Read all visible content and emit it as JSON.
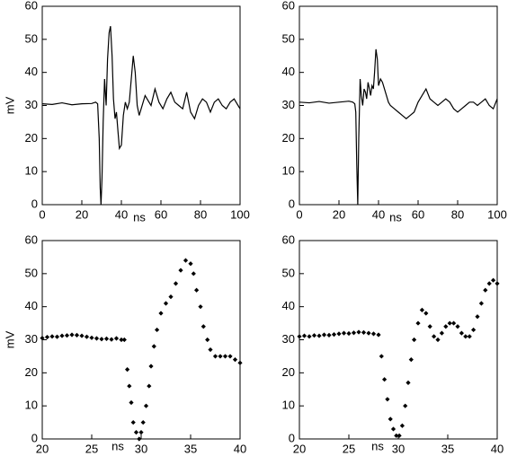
{
  "chart_data": [
    {
      "type": "line",
      "xlabel": "ns",
      "ylabel": "mV",
      "color": "#000000",
      "x": [
        0,
        5,
        10,
        15,
        20,
        25,
        27,
        28,
        28.8,
        29.3,
        29.7,
        30.2,
        30.8,
        31.5,
        32.3,
        33,
        33.8,
        34.5,
        35.3,
        36,
        36.8,
        37.5,
        38.3,
        39,
        40,
        41,
        42,
        43,
        44,
        45,
        46,
        47,
        48,
        49,
        50,
        51,
        52,
        53,
        55,
        57,
        59,
        61,
        63,
        65,
        67,
        69,
        71,
        73,
        75,
        77,
        79,
        81,
        83,
        85,
        87,
        89,
        91,
        93,
        95,
        97,
        100
      ],
      "values": [
        30.5,
        30.3,
        30.8,
        30.2,
        30.5,
        30.6,
        31,
        30.5,
        20,
        5,
        0,
        8,
        25,
        38,
        30,
        44,
        52,
        54,
        45,
        32,
        26,
        28,
        22,
        17,
        18,
        27,
        31,
        29,
        31,
        38,
        45,
        40,
        30,
        27,
        29,
        31,
        33,
        32,
        30,
        35,
        31,
        29,
        32,
        34,
        31,
        30,
        29,
        34,
        28,
        26,
        30,
        32,
        31,
        28,
        31,
        32,
        30,
        29,
        31,
        32,
        29
      ],
      "xlim": [
        0,
        100
      ],
      "xticks": [
        0,
        20,
        40,
        60,
        80,
        100
      ],
      "ylim": [
        0,
        60
      ],
      "yticks": [
        0,
        10,
        20,
        30,
        40,
        50,
        60
      ]
    },
    {
      "type": "line",
      "xlabel": "ns",
      "color": "#000000",
      "x": [
        0,
        5,
        10,
        15,
        20,
        25,
        27,
        28,
        28.5,
        29,
        29.5,
        30,
        30.7,
        31.3,
        32,
        32.7,
        33.4,
        34,
        34.7,
        35.4,
        36,
        36.7,
        37.4,
        38,
        38.7,
        39.4,
        40,
        41,
        42,
        43,
        44,
        45,
        46,
        48,
        50,
        52,
        54,
        56,
        58,
        60,
        62,
        64,
        66,
        68,
        70,
        72,
        74,
        76,
        78,
        80,
        82,
        84,
        86,
        88,
        90,
        92,
        94,
        96,
        98,
        100
      ],
      "values": [
        31,
        30.8,
        31.2,
        30.7,
        31,
        31.3,
        31,
        30.5,
        28,
        12,
        0,
        20,
        38,
        33,
        30,
        35,
        34,
        32,
        37,
        35,
        33,
        36,
        35,
        40,
        47,
        44,
        36,
        38,
        37,
        35,
        33,
        31,
        30,
        29,
        28,
        27,
        26,
        27,
        28,
        31,
        33,
        35,
        32,
        31,
        30,
        31,
        32,
        31,
        29,
        28,
        29,
        30,
        31,
        31,
        30,
        31,
        32,
        30,
        29,
        32
      ],
      "xlim": [
        0,
        100
      ],
      "xticks": [
        0,
        20,
        40,
        60,
        80,
        100
      ],
      "ylim": [
        0,
        60
      ],
      "yticks": [
        0,
        10,
        20,
        30,
        40,
        50,
        60
      ]
    },
    {
      "type": "scatter",
      "xlabel": "ns",
      "ylabel": "mV",
      "color": "#000000",
      "x": [
        20,
        20.5,
        21,
        21.5,
        22,
        22.5,
        23,
        23.5,
        24,
        24.5,
        25,
        25.5,
        26,
        26.5,
        27,
        27.5,
        28,
        28.3,
        28.6,
        28.8,
        29,
        29.2,
        29.5,
        29.8,
        30,
        30.2,
        30.5,
        30.8,
        31,
        31.3,
        31.6,
        32,
        32.5,
        33,
        33.5,
        34,
        34.5,
        35,
        35.3,
        35.6,
        36,
        36.3,
        36.7,
        37,
        37.5,
        38,
        38.5,
        39,
        39.5,
        40
      ],
      "values": [
        30.5,
        30.8,
        31,
        30.9,
        31.2,
        31.3,
        31.5,
        31.4,
        31.2,
        30.9,
        30.6,
        30.4,
        30.2,
        30.3,
        30.1,
        30.4,
        30,
        30,
        21,
        16,
        11,
        5,
        2,
        0,
        2,
        5,
        10,
        16,
        22,
        28,
        33,
        38,
        41,
        43,
        47,
        51,
        54,
        53,
        50,
        45,
        40,
        34,
        30,
        27,
        25,
        25,
        25,
        25,
        24,
        23
      ],
      "xlim": [
        20,
        40
      ],
      "xticks": [
        20,
        25,
        30,
        35,
        40
      ],
      "ylim": [
        0,
        60
      ],
      "yticks": [
        0,
        10,
        20,
        30,
        40,
        50,
        60
      ]
    },
    {
      "type": "scatter",
      "xlabel": "ns",
      "color": "#000000",
      "x": [
        20,
        20.5,
        21,
        21.5,
        22,
        22.5,
        23,
        23.5,
        24,
        24.5,
        25,
        25.5,
        26,
        26.5,
        27,
        27.5,
        28,
        28.3,
        28.6,
        28.9,
        29.2,
        29.5,
        29.8,
        30.1,
        30.4,
        30.7,
        31,
        31.3,
        31.6,
        32,
        32.4,
        32.8,
        33.2,
        33.6,
        34,
        34.4,
        34.8,
        35.2,
        35.6,
        36,
        36.4,
        36.8,
        37.2,
        37.6,
        38,
        38.4,
        38.8,
        39.2,
        39.6,
        40
      ],
      "values": [
        31,
        31.2,
        31,
        31.3,
        31.2,
        31.5,
        31.4,
        31.6,
        31.8,
        32,
        31.9,
        32.1,
        32.3,
        32.2,
        32,
        31.8,
        31.5,
        25,
        18,
        12,
        6,
        3,
        1,
        1,
        4,
        10,
        17,
        24,
        30,
        35,
        39,
        38,
        34,
        31,
        30,
        32,
        34,
        35,
        35,
        34,
        32,
        31,
        31,
        33,
        37,
        41,
        45,
        47,
        48,
        47
      ],
      "xlim": [
        20,
        40
      ],
      "xticks": [
        20,
        25,
        30,
        35,
        40
      ],
      "ylim": [
        0,
        60
      ],
      "yticks": [
        0,
        10,
        20,
        30,
        40,
        50,
        60
      ]
    }
  ]
}
